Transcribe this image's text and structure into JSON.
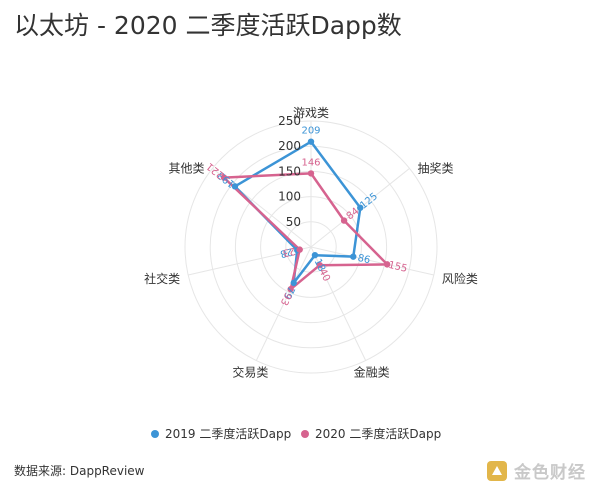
{
  "title": "以太坊 - 2020 二季度活跃Dapp数",
  "source": "数据来源: DappReview",
  "watermark": "金色财经",
  "chart_data": {
    "type": "radar",
    "title": "以太坊 - 2020 二季度活跃Dapp数",
    "categories": [
      "游戏类",
      "抽奖类",
      "风险类",
      "金融类",
      "交易类",
      "社交类",
      "其他类"
    ],
    "rlim": [
      0,
      250
    ],
    "radial_ticks": [
      50,
      100,
      150,
      200,
      250
    ],
    "radial_tick_labels": [
      "50",
      "100",
      "150",
      "200",
      "250"
    ],
    "legend_position": "bottom-center",
    "series": [
      {
        "name": "2019 二季度活跃Dapp",
        "color": "#3c94d6",
        "values": [
          209,
          125,
          86,
          18,
          79,
          28,
          193
        ]
      },
      {
        "name": "2020 二季度活跃Dapp",
        "color": "#d6638f",
        "values": [
          146,
          84,
          155,
          40,
          93,
          23,
          221
        ]
      }
    ]
  }
}
